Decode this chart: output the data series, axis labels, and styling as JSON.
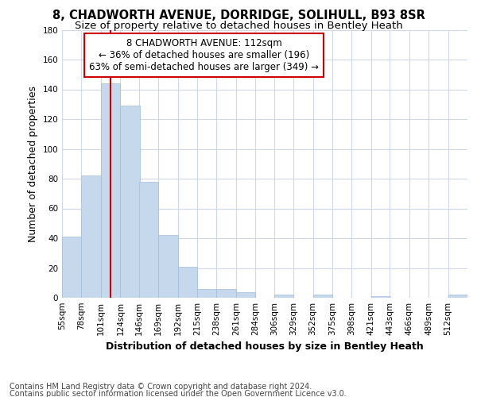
{
  "title1": "8, CHADWORTH AVENUE, DORRIDGE, SOLIHULL, B93 8SR",
  "title2": "Size of property relative to detached houses in Bentley Heath",
  "xlabel": "Distribution of detached houses by size in Bentley Heath",
  "ylabel": "Number of detached properties",
  "annotation_line1": "8 CHADWORTH AVENUE: 112sqm",
  "annotation_line2": "← 36% of detached houses are smaller (196)",
  "annotation_line3": "63% of semi-detached houses are larger (349) →",
  "bar_color": "#c5d8ec",
  "bar_edge_color": "#a0bcd8",
  "vline_color": "#cc0000",
  "vline_x": 112,
  "categories": [
    "55sqm",
    "78sqm",
    "101sqm",
    "124sqm",
    "146sqm",
    "169sqm",
    "192sqm",
    "215sqm",
    "238sqm",
    "261sqm",
    "284sqm",
    "306sqm",
    "329sqm",
    "352sqm",
    "375sqm",
    "398sqm",
    "421sqm",
    "443sqm",
    "466sqm",
    "489sqm",
    "512sqm"
  ],
  "bin_edges": [
    55,
    78,
    101,
    124,
    146,
    169,
    192,
    215,
    238,
    261,
    284,
    306,
    329,
    352,
    375,
    398,
    421,
    443,
    466,
    489,
    512
  ],
  "bin_width": 23,
  "values": [
    41,
    82,
    144,
    129,
    78,
    42,
    21,
    6,
    6,
    4,
    0,
    2,
    0,
    2,
    0,
    0,
    1,
    0,
    0,
    0,
    2
  ],
  "ylim": [
    0,
    180
  ],
  "yticks": [
    0,
    20,
    40,
    60,
    80,
    100,
    120,
    140,
    160,
    180
  ],
  "footer1": "Contains HM Land Registry data © Crown copyright and database right 2024.",
  "footer2": "Contains public sector information licensed under the Open Government Licence v3.0.",
  "background_color": "#ffffff",
  "plot_bg_color": "#ffffff",
  "annotation_box_color": "#ffffff",
  "annotation_box_edge": "#cc0000",
  "grid_color": "#d0d8e8",
  "title1_fontsize": 10.5,
  "title2_fontsize": 9.5,
  "annotation_fontsize": 8.5,
  "footer_fontsize": 7,
  "axis_label_fontsize": 9,
  "tick_fontsize": 7.5
}
